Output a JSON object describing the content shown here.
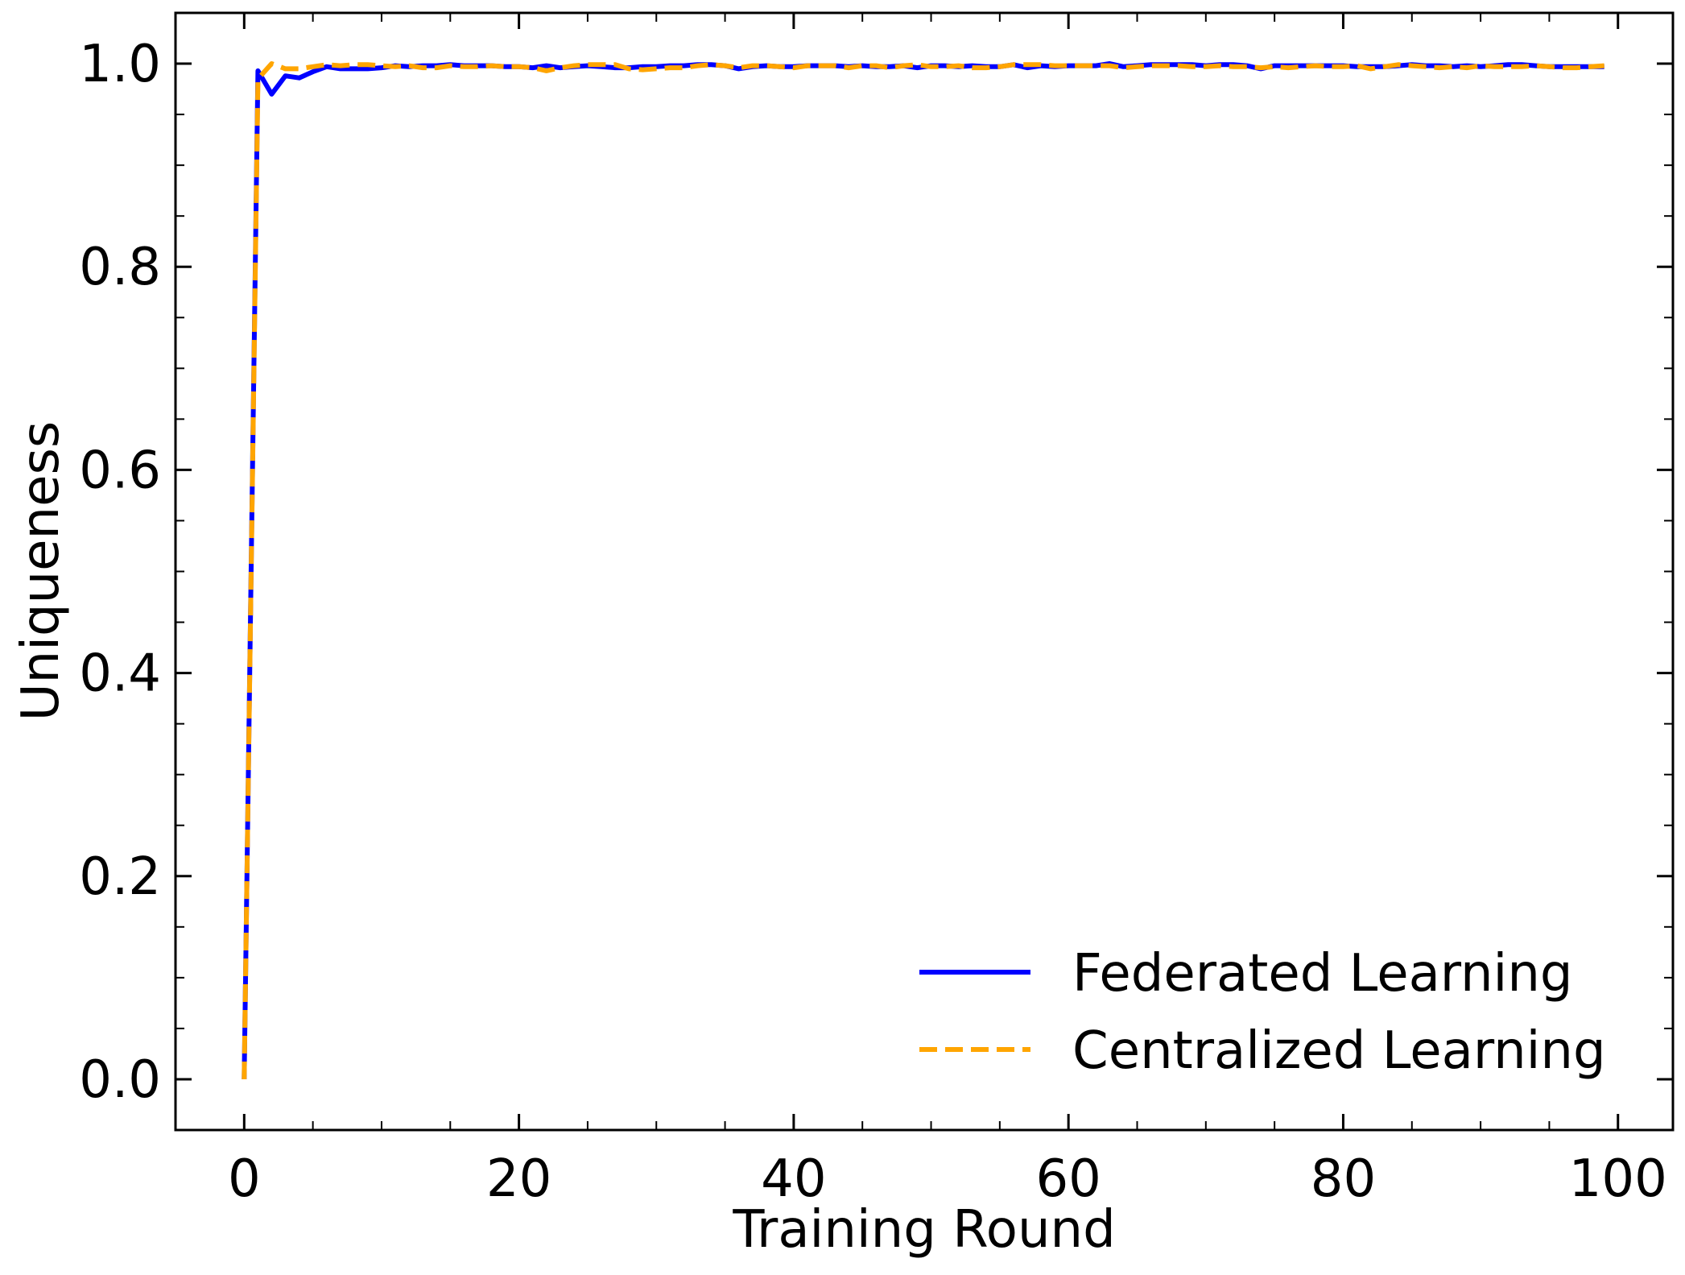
{
  "chart_data": {
    "type": "line",
    "title": "",
    "xlabel": "Training Round",
    "ylabel": "Uniqueness",
    "xlim": [
      -5,
      104
    ],
    "ylim": [
      -0.05,
      1.05
    ],
    "x_ticks": [
      0,
      20,
      40,
      60,
      80,
      100
    ],
    "x_tick_labels": [
      "0",
      "20",
      "40",
      "60",
      "80",
      "100"
    ],
    "y_ticks": [
      0.0,
      0.2,
      0.4,
      0.6,
      0.8,
      1.0
    ],
    "y_tick_labels": [
      "0.0",
      "0.2",
      "0.4",
      "0.6",
      "0.8",
      "1.0"
    ],
    "x_minor_step": 5,
    "y_minor_step": 0.05,
    "tick_direction": "in",
    "ticks_on_all_sides": true,
    "grid": false,
    "legend_position": "lower-right",
    "series": [
      {
        "name": "Federated Learning",
        "color": "#0000ff",
        "line_style": "solid",
        "x": [
          0,
          1,
          2,
          3,
          4,
          5,
          6,
          7,
          8,
          9,
          10,
          11,
          12,
          13,
          14,
          15,
          16,
          17,
          18,
          19,
          20,
          21,
          22,
          23,
          24,
          25,
          26,
          27,
          28,
          29,
          30,
          31,
          32,
          33,
          34,
          35,
          36,
          37,
          38,
          39,
          40,
          41,
          42,
          43,
          44,
          45,
          46,
          47,
          48,
          49,
          50,
          51,
          52,
          53,
          54,
          55,
          56,
          57,
          58,
          59,
          60,
          61,
          62,
          63,
          64,
          65,
          66,
          67,
          68,
          69,
          70,
          71,
          72,
          73,
          74,
          75,
          76,
          77,
          78,
          79,
          80,
          81,
          82,
          83,
          84,
          85,
          86,
          87,
          88,
          89,
          90,
          91,
          92,
          93,
          94,
          95,
          96,
          97,
          98,
          99
        ],
        "y": [
          0.0,
          0.993,
          0.97,
          0.988,
          0.986,
          0.992,
          0.997,
          0.995,
          0.995,
          0.995,
          0.996,
          0.998,
          0.997,
          0.998,
          0.998,
          0.999,
          0.998,
          0.998,
          0.998,
          0.997,
          0.997,
          0.996,
          0.998,
          0.996,
          0.997,
          0.998,
          0.997,
          0.996,
          0.996,
          0.997,
          0.997,
          0.998,
          0.998,
          0.999,
          0.999,
          0.998,
          0.995,
          0.997,
          0.998,
          0.997,
          0.997,
          0.998,
          0.998,
          0.998,
          0.997,
          0.998,
          0.997,
          0.997,
          0.998,
          0.996,
          0.998,
          0.998,
          0.997,
          0.998,
          0.997,
          0.997,
          0.999,
          0.996,
          0.998,
          0.997,
          0.998,
          0.998,
          0.998,
          1.0,
          0.997,
          0.998,
          0.999,
          0.999,
          0.999,
          0.999,
          0.998,
          0.999,
          0.999,
          0.998,
          0.995,
          0.998,
          0.998,
          0.998,
          0.998,
          0.998,
          0.998,
          0.997,
          0.997,
          0.997,
          0.998,
          0.999,
          0.998,
          0.998,
          0.997,
          0.998,
          0.997,
          0.998,
          0.999,
          0.999,
          0.998,
          0.997,
          0.997,
          0.997,
          0.997,
          0.997
        ]
      },
      {
        "name": "Centralized Learning",
        "color": "#ffa500",
        "line_style": "dashed",
        "x": [
          0,
          1,
          2,
          3,
          4,
          5,
          6,
          7,
          8,
          9,
          10,
          11,
          12,
          13,
          14,
          15,
          16,
          17,
          18,
          19,
          20,
          21,
          22,
          23,
          24,
          25,
          26,
          27,
          28,
          29,
          30,
          31,
          32,
          33,
          34,
          35,
          36,
          37,
          38,
          39,
          40,
          41,
          42,
          43,
          44,
          45,
          46,
          47,
          48,
          49,
          50,
          51,
          52,
          53,
          54,
          55,
          56,
          57,
          58,
          59,
          60,
          61,
          62,
          63,
          64,
          65,
          66,
          67,
          68,
          69,
          70,
          71,
          72,
          73,
          74,
          75,
          76,
          77,
          78,
          79,
          80,
          81,
          82,
          83,
          84,
          85,
          86,
          87,
          88,
          89,
          90,
          91,
          92,
          93,
          94,
          95,
          96,
          97,
          98,
          99
        ],
        "y": [
          0.0,
          0.985,
          1.0,
          0.995,
          0.995,
          0.997,
          0.999,
          0.998,
          0.999,
          0.999,
          0.998,
          0.997,
          0.998,
          0.996,
          0.996,
          0.998,
          0.997,
          0.997,
          0.998,
          0.997,
          0.997,
          0.996,
          0.993,
          0.996,
          0.998,
          0.999,
          0.999,
          0.999,
          0.995,
          0.994,
          0.995,
          0.996,
          0.996,
          0.998,
          0.999,
          0.998,
          0.996,
          0.998,
          0.998,
          0.997,
          0.996,
          0.998,
          0.998,
          0.998,
          0.996,
          0.998,
          0.998,
          0.996,
          0.998,
          0.999,
          0.997,
          0.997,
          0.998,
          0.996,
          0.996,
          0.997,
          0.999,
          0.999,
          0.999,
          0.998,
          0.998,
          0.998,
          0.998,
          0.998,
          0.996,
          0.997,
          0.998,
          0.998,
          0.998,
          0.997,
          0.997,
          0.998,
          0.997,
          0.997,
          0.996,
          0.997,
          0.996,
          0.997,
          0.998,
          0.997,
          0.997,
          0.998,
          0.995,
          0.997,
          0.999,
          0.998,
          0.997,
          0.996,
          0.997,
          0.996,
          0.998,
          0.997,
          0.997,
          0.997,
          0.998,
          0.997,
          0.996,
          0.996,
          0.997,
          0.998
        ]
      }
    ]
  }
}
